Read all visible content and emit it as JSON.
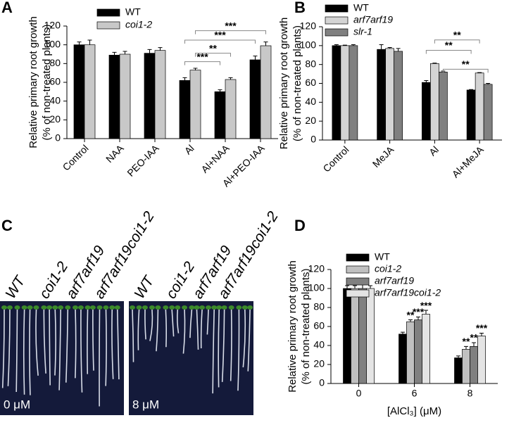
{
  "panel_labels": [
    "A",
    "B",
    "C",
    "D"
  ],
  "chart_data": [
    {
      "type": "bar",
      "y_label": [
        "Relative primary root growth",
        "(% of non-treated plants)"
      ],
      "categories": [
        "Control",
        "NAA",
        "PEO-IAA",
        "Al",
        "Al+NAA",
        "Al+PEO-IAA"
      ],
      "series": [
        {
          "name": "WT",
          "color": "#000000",
          "values": [
            100,
            89,
            91,
            62,
            50,
            84
          ],
          "errors": [
            3,
            3,
            4,
            3,
            2,
            4
          ]
        },
        {
          "name": "coi1-2",
          "color": "#c8c8c8",
          "values": [
            100,
            90,
            94,
            73,
            63,
            99
          ],
          "errors": [
            5,
            3,
            3,
            2,
            2,
            4
          ]
        }
      ],
      "annotations": [
        "***",
        "**",
        "***",
        "***"
      ],
      "ylim": [
        0,
        120
      ],
      "yticks": [
        0,
        20,
        40,
        60,
        80,
        100,
        120
      ]
    },
    {
      "type": "bar",
      "y_label": [
        "Relative primary root growth",
        "(% of non-treated plants)"
      ],
      "categories": [
        "Control",
        "MeJA",
        "Al",
        "Al+MeJA"
      ],
      "series": [
        {
          "name": "WT",
          "color": "#000000",
          "values": [
            100,
            96,
            61,
            53
          ],
          "errors": [
            1,
            5,
            2,
            0.5
          ]
        },
        {
          "name": "arf7arf19",
          "color": "#d4d4d4",
          "values": [
            100,
            97,
            81,
            71
          ],
          "errors": [
            0.5,
            1,
            0.5,
            0.5
          ]
        },
        {
          "name": "slr-1",
          "color": "#808080",
          "values": [
            100,
            94,
            72,
            59
          ],
          "errors": [
            1,
            3,
            1,
            1
          ]
        }
      ],
      "annotations": [
        "**",
        "**",
        "**"
      ],
      "ylim": [
        0,
        120
      ],
      "yticks": [
        0,
        20,
        40,
        60,
        80,
        100,
        120
      ]
    },
    {
      "type": "bar",
      "y_label": [
        "Relative primary root growth",
        "(% of non-treated plants)"
      ],
      "x_label": "[AlCl₃] (μM)",
      "categories": [
        "0",
        "6",
        "8"
      ],
      "series": [
        {
          "name": "WT",
          "color": "#000000",
          "values": [
            100,
            52,
            27
          ],
          "errors": [
            3,
            2,
            2
          ],
          "significance": [
            null,
            null,
            null
          ]
        },
        {
          "name": "coi1-2",
          "color": "#c0c0c0",
          "values": [
            100,
            65,
            36
          ],
          "errors": [
            3,
            2,
            3
          ],
          "significance": [
            null,
            "**",
            "**"
          ]
        },
        {
          "name": "arf7arf19",
          "color": "#808080",
          "values": [
            100,
            67,
            39
          ],
          "errors": [
            4,
            3,
            4
          ],
          "significance": [
            null,
            "***",
            "**"
          ]
        },
        {
          "name": "arf7arf19coi1-2",
          "color": "#e4e4e4",
          "values": [
            100,
            73,
            50
          ],
          "errors": [
            3,
            4,
            3
          ],
          "significance": [
            null,
            "***",
            "***"
          ]
        }
      ],
      "ylim": [
        0,
        120
      ],
      "yticks": [
        0,
        20,
        40,
        60,
        80,
        100,
        120
      ]
    }
  ],
  "photo_panel": {
    "genotypes": [
      "WT",
      "coi1-2",
      "arf7arf19",
      "arf7arf19coi1-2"
    ],
    "conditions": [
      "0 μM",
      "8 μM"
    ]
  }
}
